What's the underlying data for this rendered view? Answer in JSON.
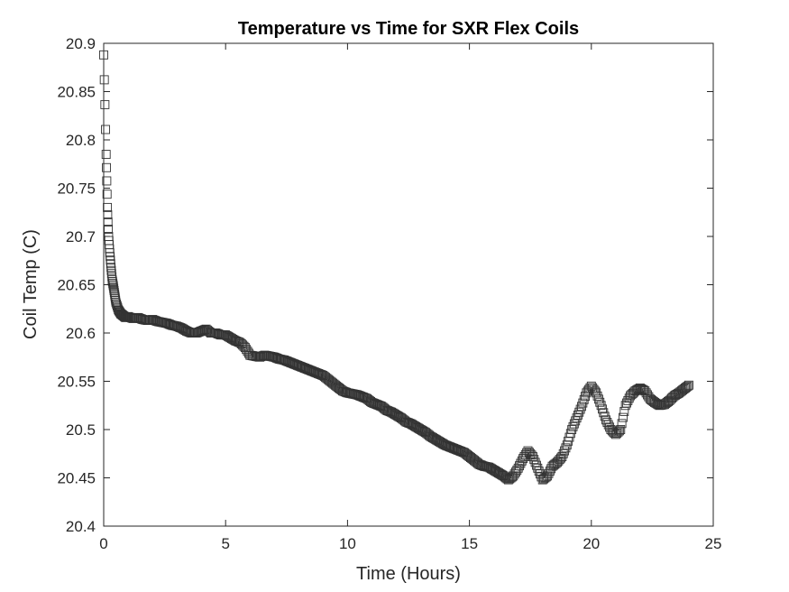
{
  "chart_data": {
    "type": "scatter",
    "title": "Temperature vs Time for SXR Flex Coils",
    "xlabel": "Time (Hours)",
    "ylabel": "Coil Temp (C)",
    "xlim": [
      0,
      25
    ],
    "ylim": [
      20.4,
      20.9
    ],
    "x_ticks": [
      0,
      5,
      10,
      15,
      20,
      25
    ],
    "x_tick_labels": [
      "0",
      "5",
      "10",
      "15",
      "20",
      "25"
    ],
    "y_ticks": [
      20.4,
      20.45,
      20.5,
      20.55,
      20.6,
      20.65,
      20.7,
      20.75,
      20.8,
      20.85,
      20.9
    ],
    "y_tick_labels": [
      "20.4",
      "20.45",
      "20.5",
      "20.55",
      "20.6",
      "20.65",
      "20.7",
      "20.75",
      "20.8",
      "20.85",
      "20.9"
    ],
    "grid": false,
    "marker": "square",
    "marker_color": "#333333",
    "series": [
      {
        "x": [
          0.0,
          0.1,
          0.15,
          0.2,
          0.25,
          0.3,
          0.35,
          0.4,
          0.45,
          0.5,
          0.6,
          0.7,
          0.8,
          0.9,
          1.0,
          1.2,
          1.4,
          1.6,
          1.8,
          2.0,
          2.2,
          2.4,
          2.6,
          2.8,
          3.0,
          3.2,
          3.4,
          3.6,
          3.8,
          4.0,
          4.2,
          4.4,
          4.6,
          4.8,
          5.0,
          5.2,
          5.4,
          5.6,
          5.8,
          6.0,
          6.2,
          6.4,
          6.6,
          6.8,
          7.0,
          7.2,
          7.4,
          7.6,
          7.8,
          8.0,
          8.2,
          8.4,
          8.6,
          8.8,
          9.0,
          9.2,
          9.4,
          9.6,
          9.8,
          10.0,
          10.2,
          10.4,
          10.6,
          10.8,
          11.0,
          11.2,
          11.4,
          11.6,
          11.8,
          12.0,
          12.2,
          12.4,
          12.6,
          12.8,
          13.0,
          13.2,
          13.4,
          13.6,
          13.8,
          14.0,
          14.2,
          14.4,
          14.6,
          14.8,
          15.0,
          15.2,
          15.4,
          15.6,
          15.8,
          16.0,
          16.2,
          16.4,
          16.6,
          16.8,
          17.0,
          17.2,
          17.4,
          17.6,
          17.8,
          18.0,
          18.2,
          18.4,
          18.6,
          18.8,
          19.0,
          19.2,
          19.4,
          19.6,
          19.8,
          20.0,
          20.2,
          20.4,
          20.6,
          20.8,
          21.0,
          21.2,
          21.4,
          21.6,
          21.8,
          22.0,
          22.2,
          22.4,
          22.6,
          22.8,
          23.0,
          23.2,
          23.4,
          23.6,
          23.8,
          24.0
        ],
        "y": [
          20.888,
          20.785,
          20.73,
          20.7,
          20.683,
          20.668,
          20.655,
          20.648,
          20.64,
          20.632,
          20.624,
          20.62,
          20.618,
          20.616,
          20.617,
          20.615,
          20.616,
          20.614,
          20.613,
          20.614,
          20.612,
          20.611,
          20.61,
          20.608,
          20.607,
          20.605,
          20.602,
          20.6,
          20.6,
          20.602,
          20.604,
          20.6,
          20.6,
          20.598,
          20.598,
          20.595,
          20.592,
          20.59,
          20.585,
          20.577,
          20.576,
          20.575,
          20.577,
          20.576,
          20.575,
          20.573,
          20.572,
          20.57,
          20.568,
          20.566,
          20.564,
          20.562,
          20.56,
          20.558,
          20.556,
          20.552,
          20.548,
          20.544,
          20.54,
          20.538,
          20.537,
          20.536,
          20.534,
          20.532,
          20.528,
          20.526,
          20.524,
          20.52,
          20.518,
          20.515,
          20.512,
          20.508,
          20.506,
          20.503,
          20.5,
          20.497,
          20.493,
          20.49,
          20.487,
          20.484,
          20.482,
          20.48,
          20.478,
          20.476,
          20.472,
          20.468,
          20.464,
          20.462,
          20.461,
          20.458,
          20.455,
          20.452,
          20.448,
          20.452,
          20.46,
          20.47,
          20.478,
          20.472,
          20.46,
          20.448,
          20.452,
          20.462,
          20.466,
          20.472,
          20.484,
          20.5,
          20.512,
          20.524,
          20.538,
          20.545,
          20.538,
          20.525,
          20.51,
          20.5,
          20.495,
          20.5,
          20.525,
          20.535,
          20.54,
          20.543,
          20.54,
          20.532,
          20.528,
          20.525,
          20.526,
          20.53,
          20.535,
          20.538,
          20.542,
          20.546
        ]
      }
    ]
  }
}
